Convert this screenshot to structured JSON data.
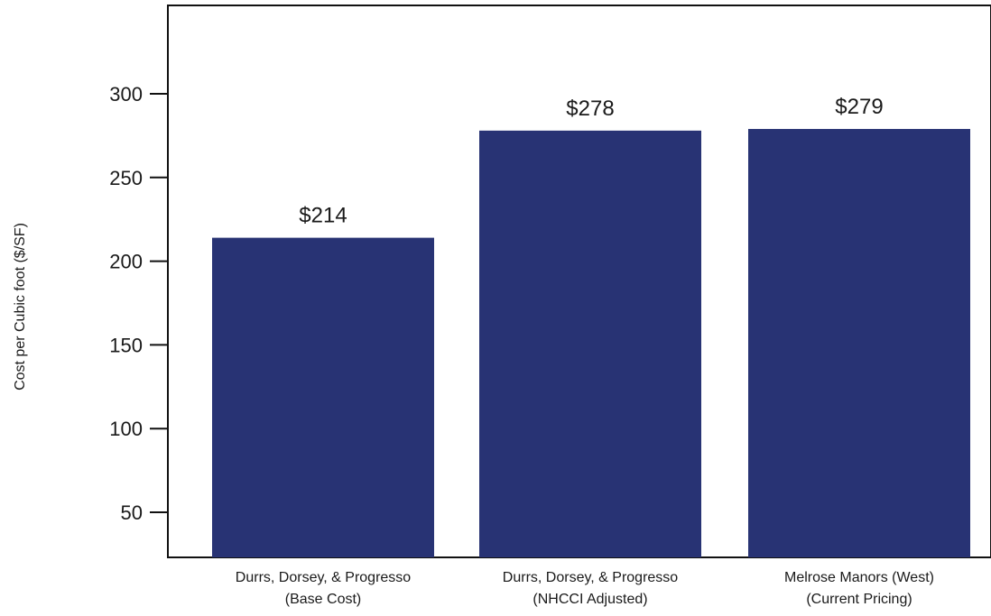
{
  "chart_data": {
    "type": "bar",
    "categories": [
      [
        "Durrs, Dorsey, & Progresso",
        "(Base Cost)"
      ],
      [
        "Durrs, Dorsey, & Progresso",
        "(NHCCI Adjusted)"
      ],
      [
        "Melrose Manors (West)",
        "(Current Pricing)"
      ]
    ],
    "values": [
      214,
      278,
      279
    ],
    "data_labels": [
      "$214",
      "$278",
      "$279"
    ],
    "title": "",
    "xlabel": "",
    "ylabel": "Cost per Cubic foot ($/SF)",
    "yticks": [
      50,
      100,
      150,
      200,
      250,
      300
    ],
    "ylim": [
      25,
      352
    ],
    "grid": false,
    "legend": "none",
    "bar_color": "#283374"
  }
}
